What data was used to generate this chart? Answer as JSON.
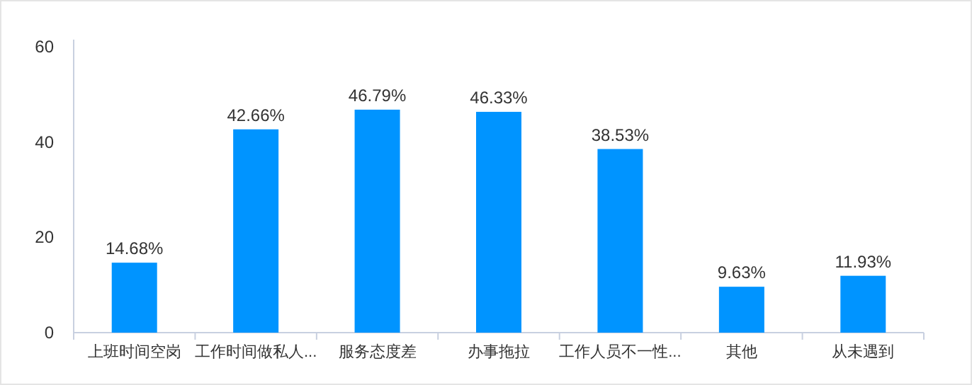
{
  "chart_data": {
    "type": "bar",
    "categories": [
      "上班时间空岗",
      "工作时间做私人...",
      "服务态度差",
      "办事拖拉",
      "工作人员不一性...",
      "其他",
      "从未遇到"
    ],
    "values": [
      14.68,
      42.66,
      46.79,
      46.33,
      38.53,
      9.63,
      11.93
    ],
    "value_labels": [
      "14.68%",
      "42.66%",
      "46.79%",
      "46.33%",
      "38.53%",
      "9.63%",
      "11.93%"
    ],
    "color": "#0094ff",
    "ylim": [
      0,
      60
    ],
    "yticks": [
      0,
      20,
      40,
      60
    ],
    "grid": false
  }
}
